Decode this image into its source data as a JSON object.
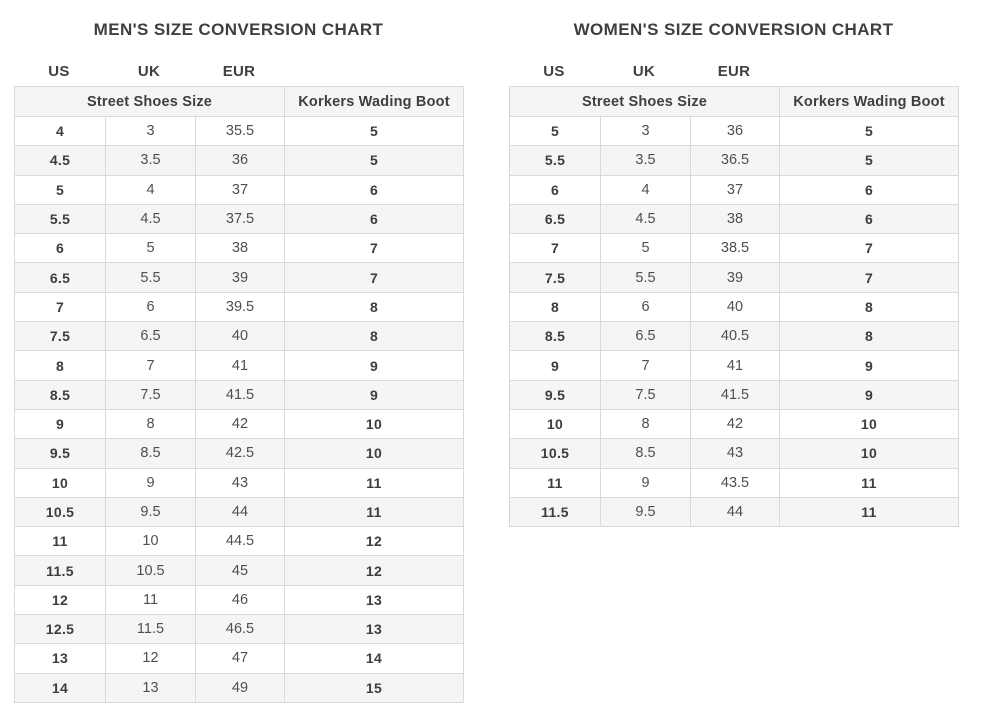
{
  "colors": {
    "page_background": "#ffffff",
    "title_text": "#3f3f3f",
    "bold_cell_text": "#3d3d3d",
    "plain_cell_text": "#4f4f4f",
    "alt_row_background": "#f5f5f4",
    "header_background": "#f5f5f4",
    "border": "#d9d9d9"
  },
  "chart_data": [
    {
      "type": "table",
      "title": "MEN'S SIZE CONVERSION CHART",
      "column_labels": [
        "US",
        "UK",
        "EUR"
      ],
      "group_headers": [
        "Street Shoes Size",
        "Korkers Wading Boot"
      ],
      "columns": [
        "US",
        "UK",
        "EUR",
        "Korkers Wading Boot"
      ],
      "rows": [
        [
          "4",
          "3",
          "35.5",
          "5"
        ],
        [
          "4.5",
          "3.5",
          "36",
          "5"
        ],
        [
          "5",
          "4",
          "37",
          "6"
        ],
        [
          "5.5",
          "4.5",
          "37.5",
          "6"
        ],
        [
          "6",
          "5",
          "38",
          "7"
        ],
        [
          "6.5",
          "5.5",
          "39",
          "7"
        ],
        [
          "7",
          "6",
          "39.5",
          "8"
        ],
        [
          "7.5",
          "6.5",
          "40",
          "8"
        ],
        [
          "8",
          "7",
          "41",
          "9"
        ],
        [
          "8.5",
          "7.5",
          "41.5",
          "9"
        ],
        [
          "9",
          "8",
          "42",
          "10"
        ],
        [
          "9.5",
          "8.5",
          "42.5",
          "10"
        ],
        [
          "10",
          "9",
          "43",
          "11"
        ],
        [
          "10.5",
          "9.5",
          "44",
          "11"
        ],
        [
          "11",
          "10",
          "44.5",
          "12"
        ],
        [
          "11.5",
          "10.5",
          "45",
          "12"
        ],
        [
          "12",
          "11",
          "46",
          "13"
        ],
        [
          "12.5",
          "11.5",
          "46.5",
          "13"
        ],
        [
          "13",
          "12",
          "47",
          "14"
        ],
        [
          "14",
          "13",
          "49",
          "15"
        ]
      ]
    },
    {
      "type": "table",
      "title": "WOMEN'S SIZE CONVERSION CHART",
      "column_labels": [
        "US",
        "UK",
        "EUR"
      ],
      "group_headers": [
        "Street Shoes Size",
        "Korkers Wading Boot"
      ],
      "columns": [
        "US",
        "UK",
        "EUR",
        "Korkers Wading Boot"
      ],
      "rows": [
        [
          "5",
          "3",
          "36",
          "5"
        ],
        [
          "5.5",
          "3.5",
          "36.5",
          "5"
        ],
        [
          "6",
          "4",
          "37",
          "6"
        ],
        [
          "6.5",
          "4.5",
          "38",
          "6"
        ],
        [
          "7",
          "5",
          "38.5",
          "7"
        ],
        [
          "7.5",
          "5.5",
          "39",
          "7"
        ],
        [
          "8",
          "6",
          "40",
          "8"
        ],
        [
          "8.5",
          "6.5",
          "40.5",
          "8"
        ],
        [
          "9",
          "7",
          "41",
          "9"
        ],
        [
          "9.5",
          "7.5",
          "41.5",
          "9"
        ],
        [
          "10",
          "8",
          "42",
          "10"
        ],
        [
          "10.5",
          "8.5",
          "43",
          "10"
        ],
        [
          "11",
          "9",
          "43.5",
          "11"
        ],
        [
          "11.5",
          "9.5",
          "44",
          "11"
        ]
      ]
    }
  ]
}
